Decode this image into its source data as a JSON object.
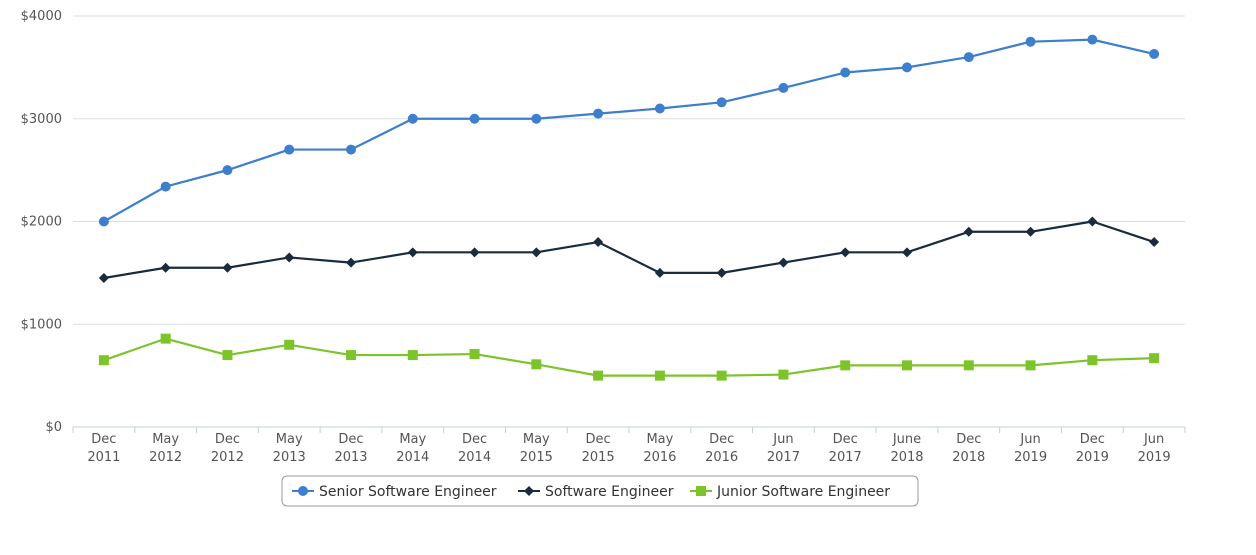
{
  "chart_data": {
    "type": "line",
    "title": "",
    "xlabel": "",
    "ylabel": "",
    "ylim": [
      0,
      4000
    ],
    "y_ticks": [
      "$0",
      "$1000",
      "$2000",
      "$3000",
      "$4000"
    ],
    "y_tick_values": [
      0,
      1000,
      2000,
      3000,
      4000
    ],
    "grid": true,
    "legend_position": "bottom",
    "categories": [
      [
        "Dec",
        "2011"
      ],
      [
        "May",
        "2012"
      ],
      [
        "Dec",
        "2012"
      ],
      [
        "May",
        "2013"
      ],
      [
        "Dec",
        "2013"
      ],
      [
        "May",
        "2014"
      ],
      [
        "Dec",
        "2014"
      ],
      [
        "May",
        "2015"
      ],
      [
        "Dec",
        "2015"
      ],
      [
        "May",
        "2016"
      ],
      [
        "Dec",
        "2016"
      ],
      [
        "Jun",
        "2017"
      ],
      [
        "Dec",
        "2017"
      ],
      [
        "June",
        "2018"
      ],
      [
        "Dec",
        "2018"
      ],
      [
        "Jun",
        "2019"
      ],
      [
        "Dec",
        "2019"
      ],
      [
        "Jun",
        "2019"
      ]
    ],
    "series": [
      {
        "name": "Senior Software Engineer",
        "color": "#3d7fcc",
        "marker": "circle",
        "values": [
          2000,
          2340,
          2500,
          2700,
          2700,
          3000,
          3000,
          3000,
          3050,
          3100,
          3160,
          3300,
          3450,
          3500,
          3600,
          3750,
          3770,
          3630
        ]
      },
      {
        "name": "Software Engineer",
        "color": "#1a2b3d",
        "marker": "diamond",
        "values": [
          1450,
          1550,
          1550,
          1650,
          1600,
          1700,
          1700,
          1700,
          1800,
          1500,
          1500,
          1600,
          1700,
          1700,
          1900,
          1900,
          2000,
          1800
        ]
      },
      {
        "name": "Junior Software Engineer",
        "color": "#7dc42a",
        "marker": "square",
        "values": [
          650,
          860,
          700,
          800,
          700,
          700,
          710,
          610,
          500,
          500,
          500,
          510,
          600,
          600,
          600,
          600,
          650,
          670
        ]
      }
    ]
  }
}
